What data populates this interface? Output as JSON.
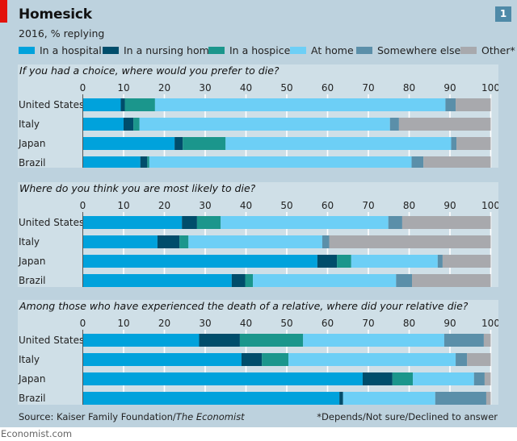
{
  "header": {
    "title": "Homesick",
    "subtitle": "2016, % replying",
    "chart_number": "1"
  },
  "legend": [
    {
      "label": "In a hospital",
      "color": "#00a2dc"
    },
    {
      "label": "In a nursing home",
      "color": "#004d6b"
    },
    {
      "label": "In a hospice",
      "color": "#1b968c"
    },
    {
      "label": "At home",
      "color": "#6dcff6"
    },
    {
      "label": "Somewhere else",
      "color": "#5b8fa9"
    },
    {
      "label": "Other*",
      "color": "#a8a9ad"
    }
  ],
  "footer": {
    "source_prefix": "Source: Kaiser Family Foundation/",
    "source_italic": "The Economist",
    "footnote": "*Depends/Not sure/Declined to answer",
    "site": "Economist.com"
  },
  "chart_data": [
    {
      "type": "bar",
      "orientation": "horizontal",
      "stacked": true,
      "title": "If you had a choice, where would you prefer to die?",
      "xlim": [
        0,
        100
      ],
      "xticks": [
        0,
        10,
        20,
        30,
        40,
        50,
        60,
        70,
        80,
        90,
        100
      ],
      "grid": true,
      "categories": [
        "United States",
        "Italy",
        "Japan",
        "Brazil"
      ],
      "series": [
        {
          "name": "In a hospital",
          "values": [
            9.3,
            10.0,
            22.5,
            14.1
          ]
        },
        {
          "name": "In a nursing home",
          "values": [
            1.0,
            2.4,
            2.0,
            1.7
          ]
        },
        {
          "name": "In a hospice",
          "values": [
            7.4,
            1.5,
            10.5,
            0.5
          ]
        },
        {
          "name": "At home",
          "values": [
            71.2,
            61.4,
            55.3,
            64.3
          ]
        },
        {
          "name": "Somewhere else",
          "values": [
            2.5,
            2.2,
            1.3,
            2.9
          ]
        },
        {
          "name": "Other*",
          "values": [
            8.6,
            22.5,
            8.4,
            16.5
          ]
        }
      ]
    },
    {
      "type": "bar",
      "orientation": "horizontal",
      "stacked": true,
      "title": "Where do you think you are most likely to die?",
      "xlim": [
        0,
        100
      ],
      "xticks": [
        0,
        10,
        20,
        30,
        40,
        50,
        60,
        70,
        80,
        90,
        100
      ],
      "grid": true,
      "categories": [
        "United States",
        "Italy",
        "Japan",
        "Brazil"
      ],
      "series": [
        {
          "name": "In a hospital",
          "values": [
            24.3,
            18.3,
            57.5,
            36.5
          ]
        },
        {
          "name": "In a nursing home",
          "values": [
            3.7,
            5.4,
            4.8,
            3.3
          ]
        },
        {
          "name": "In a hospice",
          "values": [
            5.8,
            2.2,
            3.5,
            1.9
          ]
        },
        {
          "name": "At home",
          "values": [
            41.1,
            32.8,
            21.2,
            35.1
          ]
        },
        {
          "name": "Somewhere else",
          "values": [
            3.4,
            1.7,
            1.2,
            3.9
          ]
        },
        {
          "name": "Other*",
          "values": [
            21.7,
            39.6,
            11.8,
            19.3
          ]
        }
      ]
    },
    {
      "type": "bar",
      "orientation": "horizontal",
      "stacked": true,
      "title": "Among those who have experienced the death of a relative, where did your relative die?",
      "xlim": [
        0,
        100
      ],
      "xticks": [
        0,
        10,
        20,
        30,
        40,
        50,
        60,
        70,
        80,
        90,
        100
      ],
      "grid": true,
      "categories": [
        "United States",
        "Italy",
        "Japan",
        "Brazil"
      ],
      "series": [
        {
          "name": "In a hospital",
          "values": [
            28.5,
            38.9,
            68.6,
            62.9
          ]
        },
        {
          "name": "In a nursing home",
          "values": [
            10.0,
            5.0,
            7.3,
            0.9
          ]
        },
        {
          "name": "In a hospice",
          "values": [
            15.5,
            6.5,
            5.0,
            0.0
          ]
        },
        {
          "name": "At home",
          "values": [
            34.6,
            41.0,
            15.0,
            22.6
          ]
        },
        {
          "name": "Somewhere else",
          "values": [
            9.7,
            2.8,
            2.6,
            12.5
          ]
        },
        {
          "name": "Other*",
          "values": [
            1.7,
            5.8,
            1.5,
            1.1
          ]
        }
      ]
    }
  ]
}
